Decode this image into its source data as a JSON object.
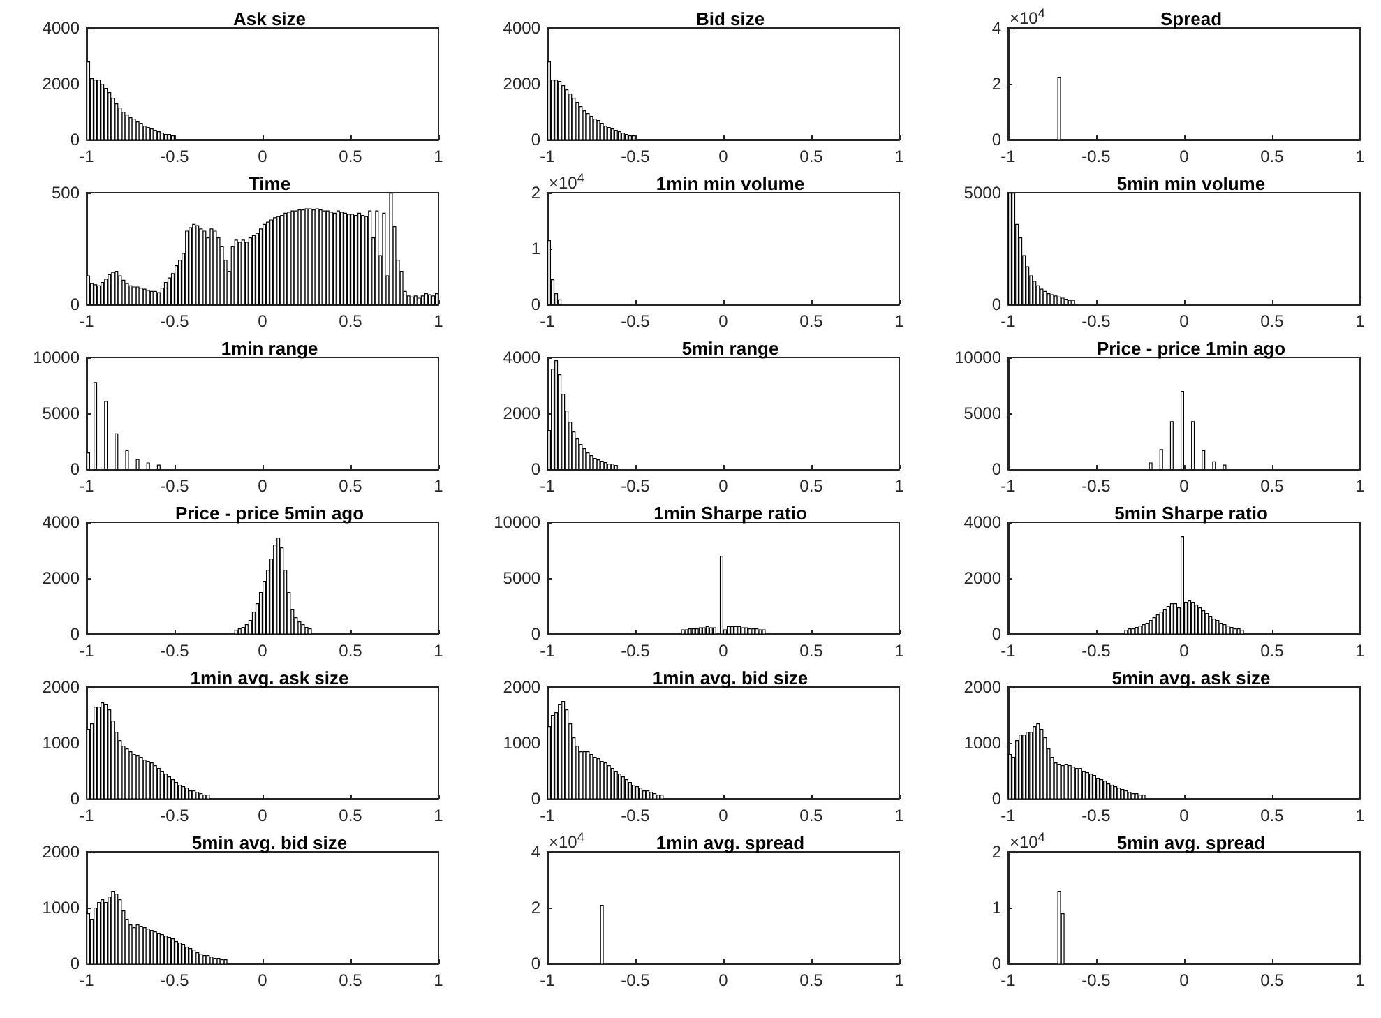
{
  "chart_data": [
    {
      "type": "histogram",
      "title": "Ask size",
      "color": "#ffffff",
      "xlim": [
        -1,
        1
      ],
      "xticks": [
        -1,
        -0.5,
        0,
        0.5,
        1
      ],
      "ylim": [
        0,
        4000
      ],
      "yticks": [
        0,
        2000,
        4000
      ],
      "bins": [
        -1,
        -0.98,
        -0.96,
        -0.94,
        -0.92,
        -0.9,
        -0.88,
        -0.86,
        -0.84,
        -0.82,
        -0.8,
        -0.78,
        -0.76,
        -0.74,
        -0.72,
        -0.7,
        -0.68,
        -0.66,
        -0.64,
        -0.62,
        -0.6,
        -0.58,
        -0.56,
        -0.54,
        -0.52,
        -0.5
      ],
      "values": [
        2800,
        2200,
        2150,
        2150,
        2000,
        1850,
        1700,
        1500,
        1300,
        1150,
        1000,
        900,
        800,
        750,
        650,
        600,
        500,
        450,
        400,
        350,
        300,
        250,
        200,
        200,
        150
      ]
    },
    {
      "type": "histogram",
      "title": "Bid size",
      "color": "#ffffff",
      "xlim": [
        -1,
        1
      ],
      "xticks": [
        -1,
        -0.5,
        0,
        0.5,
        1
      ],
      "ylim": [
        0,
        4000
      ],
      "yticks": [
        0,
        2000,
        4000
      ],
      "bins": [
        -1,
        -0.98,
        -0.96,
        -0.94,
        -0.92,
        -0.9,
        -0.88,
        -0.86,
        -0.84,
        -0.82,
        -0.8,
        -0.78,
        -0.76,
        -0.74,
        -0.72,
        -0.7,
        -0.68,
        -0.66,
        -0.64,
        -0.62,
        -0.6,
        -0.58,
        -0.56,
        -0.54,
        -0.52,
        -0.5
      ],
      "values": [
        2800,
        2150,
        2150,
        2100,
        1950,
        1800,
        1650,
        1500,
        1350,
        1200,
        1050,
        950,
        850,
        750,
        700,
        600,
        500,
        450,
        400,
        350,
        300,
        250,
        200,
        150,
        150
      ]
    },
    {
      "type": "histogram",
      "title": "Spread",
      "color": "#ffffff",
      "xlim": [
        -1,
        1
      ],
      "xticks": [
        -1,
        -0.5,
        0,
        0.5,
        1
      ],
      "ylim": [
        0,
        4
      ],
      "yticks": [
        0,
        2,
        4
      ],
      "annotations": [
        "×10$^{4}$"
      ],
      "bins": [
        -0.72,
        -0.7
      ],
      "values": [
        2.25
      ]
    },
    {
      "type": "histogram",
      "title": "Time",
      "color": "#ffffff",
      "xlim": [
        -1,
        1
      ],
      "xticks": [
        -1,
        -0.5,
        0,
        0.5,
        1
      ],
      "ylim": [
        0,
        500
      ],
      "yticks": [
        0,
        500
      ],
      "bins": [
        -1,
        -0.98,
        -0.96,
        -0.94,
        -0.92,
        -0.9,
        -0.88,
        -0.86,
        -0.84,
        -0.82,
        -0.8,
        -0.78,
        -0.76,
        -0.74,
        -0.72,
        -0.7,
        -0.68,
        -0.66,
        -0.64,
        -0.62,
        -0.6,
        -0.58,
        -0.56,
        -0.54,
        -0.52,
        -0.5,
        -0.48,
        -0.46,
        -0.44,
        -0.42,
        -0.4,
        -0.38,
        -0.36,
        -0.34,
        -0.32,
        -0.3,
        -0.28,
        -0.26,
        -0.24,
        -0.22,
        -0.2,
        -0.18,
        -0.16,
        -0.14,
        -0.12,
        -0.1,
        -0.08,
        -0.06,
        -0.04,
        -0.02,
        0,
        0.02,
        0.04,
        0.06,
        0.08,
        0.1,
        0.12,
        0.14,
        0.16,
        0.18,
        0.2,
        0.22,
        0.24,
        0.26,
        0.28,
        0.3,
        0.32,
        0.34,
        0.36,
        0.38,
        0.4,
        0.42,
        0.44,
        0.46,
        0.48,
        0.5,
        0.52,
        0.54,
        0.56,
        0.58,
        0.6,
        0.62,
        0.64,
        0.66,
        0.68,
        0.7,
        0.72,
        0.74,
        0.76,
        0.78,
        0.8,
        0.82,
        0.84,
        0.86,
        0.88,
        0.9,
        0.92,
        0.94,
        0.96,
        0.98,
        1
      ],
      "values": [
        130,
        95,
        90,
        85,
        100,
        115,
        135,
        145,
        150,
        130,
        110,
        95,
        85,
        80,
        80,
        75,
        70,
        65,
        60,
        60,
        55,
        75,
        100,
        120,
        140,
        175,
        200,
        230,
        330,
        345,
        360,
        355,
        340,
        330,
        300,
        340,
        330,
        300,
        260,
        200,
        150,
        260,
        290,
        280,
        290,
        280,
        300,
        310,
        320,
        340,
        360,
        370,
        380,
        390,
        395,
        400,
        410,
        415,
        420,
        420,
        425,
        425,
        430,
        430,
        425,
        430,
        425,
        420,
        420,
        415,
        410,
        420,
        415,
        410,
        405,
        405,
        400,
        410,
        400,
        395,
        420,
        300,
        420,
        220,
        410,
        130,
        500,
        350,
        200,
        150,
        60,
        40,
        35,
        40,
        30,
        40,
        50,
        45,
        40,
        50
      ]
    },
    {
      "type": "histogram",
      "title": "1min min volume",
      "color": "#ffffff",
      "xlim": [
        -1,
        1
      ],
      "xticks": [
        -1,
        -0.5,
        0,
        0.5,
        1
      ],
      "ylim": [
        0,
        2
      ],
      "yticks": [
        0,
        1,
        2
      ],
      "annotations": [
        "×10$^{4}$"
      ],
      "bins": [
        -1,
        -0.98,
        -0.96,
        -0.94,
        -0.92
      ],
      "values": [
        1.15,
        0.45,
        0.2,
        0.09
      ]
    },
    {
      "type": "histogram",
      "title": "5min min volume",
      "color": "#ffffff",
      "xlim": [
        -1,
        1
      ],
      "xticks": [
        -1,
        -0.5,
        0,
        0.5,
        1
      ],
      "ylim": [
        0,
        5000
      ],
      "yticks": [
        0,
        5000
      ],
      "bins": [
        -1,
        -0.98,
        -0.96,
        -0.94,
        -0.92,
        -0.9,
        -0.88,
        -0.86,
        -0.84,
        -0.82,
        -0.8,
        -0.78,
        -0.76,
        -0.74,
        -0.72,
        -0.7,
        -0.68,
        -0.66,
        -0.64,
        -0.62
      ],
      "values": [
        5000,
        5000,
        3600,
        3000,
        2200,
        1700,
        1300,
        1050,
        850,
        700,
        600,
        500,
        450,
        400,
        350,
        300,
        250,
        200,
        200
      ]
    },
    {
      "type": "histogram",
      "title": "1min range",
      "color": "#ffffff",
      "xlim": [
        -1,
        1
      ],
      "xticks": [
        -1,
        -0.5,
        0,
        0.5,
        1
      ],
      "ylim": [
        0,
        10000
      ],
      "yticks": [
        0,
        5000,
        10000
      ],
      "bins": [
        -1,
        -0.98,
        -0.96,
        -0.94,
        -0.92,
        -0.9,
        -0.88,
        -0.86,
        -0.84,
        -0.82,
        -0.8,
        -0.78,
        -0.76,
        -0.74,
        -0.72,
        -0.7,
        -0.68,
        -0.66,
        -0.64,
        -0.62,
        -0.6,
        -0.58
      ],
      "values": [
        1500,
        0,
        7800,
        0,
        0,
        6100,
        0,
        0,
        3200,
        0,
        0,
        1700,
        0,
        0,
        900,
        0,
        0,
        600,
        0,
        0,
        400
      ]
    },
    {
      "type": "histogram",
      "title": "5min range",
      "color": "#ffffff",
      "xlim": [
        -1,
        1
      ],
      "xticks": [
        -1,
        -0.5,
        0,
        0.5,
        1
      ],
      "ylim": [
        0,
        4000
      ],
      "yticks": [
        0,
        2000,
        4000
      ],
      "bins": [
        -1,
        -0.98,
        -0.96,
        -0.94,
        -0.92,
        -0.9,
        -0.88,
        -0.86,
        -0.84,
        -0.82,
        -0.8,
        -0.78,
        -0.76,
        -0.74,
        -0.72,
        -0.7,
        -0.68,
        -0.66,
        -0.64,
        -0.62,
        -0.6
      ],
      "values": [
        1400,
        3600,
        3900,
        3400,
        2700,
        2100,
        1700,
        1350,
        1100,
        900,
        750,
        600,
        500,
        400,
        350,
        300,
        250,
        200,
        200,
        150
      ]
    },
    {
      "type": "histogram",
      "title": "Price - price 1min ago",
      "color": "#ffffff",
      "xlim": [
        -1,
        1
      ],
      "xticks": [
        -1,
        -0.5,
        0,
        0.5,
        1
      ],
      "ylim": [
        0,
        10000
      ],
      "yticks": [
        0,
        5000,
        10000
      ],
      "bins": [
        -0.2,
        -0.18,
        -0.16,
        -0.14,
        -0.12,
        -0.1,
        -0.08,
        -0.06,
        -0.04,
        -0.02,
        0,
        0.02,
        0.04,
        0.06,
        0.08,
        0.1,
        0.12,
        0.14,
        0.16,
        0.18,
        0.2,
        0.22,
        0.24
      ],
      "values": [
        600,
        0,
        0,
        1800,
        0,
        0,
        4300,
        0,
        0,
        7000,
        0,
        0,
        4300,
        0,
        0,
        1700,
        0,
        0,
        700,
        0,
        0,
        400
      ]
    },
    {
      "type": "histogram",
      "title": "Price - price 5min ago",
      "color": "#ffffff",
      "xlim": [
        -1,
        1
      ],
      "xticks": [
        -1,
        -0.5,
        0,
        0.5,
        1
      ],
      "ylim": [
        0,
        4000
      ],
      "yticks": [
        0,
        2000,
        4000
      ],
      "bins": [
        -0.16,
        -0.14,
        -0.12,
        -0.1,
        -0.08,
        -0.06,
        -0.04,
        -0.02,
        0,
        0.02,
        0.04,
        0.06,
        0.08,
        0.1,
        0.12,
        0.14,
        0.16,
        0.18,
        0.2,
        0.22,
        0.24,
        0.26,
        0.28
      ],
      "values": [
        150,
        200,
        250,
        350,
        500,
        800,
        1100,
        1500,
        1900,
        2300,
        2700,
        3200,
        3450,
        3100,
        2300,
        1500,
        900,
        600,
        450,
        350,
        250,
        200
      ]
    },
    {
      "type": "histogram",
      "title": "1min Sharpe ratio",
      "color": "#ffffff",
      "xlim": [
        -1,
        1
      ],
      "xticks": [
        -1,
        -0.5,
        0,
        0.5,
        1
      ],
      "ylim": [
        0,
        10000
      ],
      "yticks": [
        0,
        5000,
        10000
      ],
      "bins": [
        -0.24,
        -0.22,
        -0.2,
        -0.18,
        -0.16,
        -0.14,
        -0.12,
        -0.1,
        -0.08,
        -0.06,
        -0.04,
        -0.02,
        0,
        0.02,
        0.04,
        0.06,
        0.08,
        0.1,
        0.12,
        0.14,
        0.16,
        0.18,
        0.2,
        0.22,
        0.24
      ],
      "values": [
        400,
        400,
        500,
        500,
        500,
        600,
        600,
        700,
        600,
        600,
        0,
        7000,
        400,
        700,
        700,
        700,
        700,
        600,
        600,
        500,
        500,
        500,
        400,
        400
      ]
    },
    {
      "type": "histogram",
      "title": "5min Sharpe ratio",
      "color": "#ffffff",
      "xlim": [
        -1,
        1
      ],
      "xticks": [
        -1,
        -0.5,
        0,
        0.5,
        1
      ],
      "ylim": [
        0,
        4000
      ],
      "yticks": [
        0,
        2000,
        4000
      ],
      "bins": [
        -0.34,
        -0.32,
        -0.3,
        -0.28,
        -0.26,
        -0.24,
        -0.22,
        -0.2,
        -0.18,
        -0.16,
        -0.14,
        -0.12,
        -0.1,
        -0.08,
        -0.06,
        -0.04,
        -0.02,
        0,
        0.02,
        0.04,
        0.06,
        0.08,
        0.1,
        0.12,
        0.14,
        0.16,
        0.18,
        0.2,
        0.22,
        0.24,
        0.26,
        0.28,
        0.3,
        0.32,
        0.34
      ],
      "values": [
        150,
        200,
        200,
        250,
        300,
        350,
        400,
        500,
        600,
        700,
        800,
        900,
        1000,
        1100,
        1100,
        950,
        3500,
        1150,
        1200,
        1150,
        1050,
        950,
        850,
        750,
        650,
        550,
        500,
        400,
        350,
        300,
        250,
        200,
        200,
        150
      ]
    },
    {
      "type": "histogram",
      "title": "1min avg. ask size",
      "color": "#ffffff",
      "xlim": [
        -1,
        1
      ],
      "xticks": [
        -1,
        -0.5,
        0,
        0.5,
        1
      ],
      "ylim": [
        0,
        2000
      ],
      "yticks": [
        0,
        1000,
        2000
      ],
      "bins": [
        -1,
        -0.98,
        -0.96,
        -0.94,
        -0.92,
        -0.9,
        -0.88,
        -0.86,
        -0.84,
        -0.82,
        -0.8,
        -0.78,
        -0.76,
        -0.74,
        -0.72,
        -0.7,
        -0.68,
        -0.66,
        -0.64,
        -0.62,
        -0.6,
        -0.58,
        -0.56,
        -0.54,
        -0.52,
        -0.5,
        -0.48,
        -0.46,
        -0.44,
        -0.42,
        -0.4,
        -0.38,
        -0.36,
        -0.34,
        -0.32,
        -0.3
      ],
      "values": [
        1250,
        1350,
        1650,
        1650,
        1725,
        1700,
        1600,
        1400,
        1200,
        1050,
        950,
        900,
        850,
        800,
        775,
        750,
        700,
        675,
        650,
        600,
        550,
        500,
        450,
        400,
        350,
        300,
        250,
        225,
        200,
        150,
        150,
        125,
        100,
        75,
        75
      ]
    },
    {
      "type": "histogram",
      "title": "1min avg. bid size",
      "color": "#ffffff",
      "xlim": [
        -1,
        1
      ],
      "xticks": [
        -1,
        -0.5,
        0,
        0.5,
        1
      ],
      "ylim": [
        0,
        2000
      ],
      "yticks": [
        0,
        1000,
        2000
      ],
      "bins": [
        -1,
        -0.98,
        -0.96,
        -0.94,
        -0.92,
        -0.9,
        -0.88,
        -0.86,
        -0.84,
        -0.82,
        -0.8,
        -0.78,
        -0.76,
        -0.74,
        -0.72,
        -0.7,
        -0.68,
        -0.66,
        -0.64,
        -0.62,
        -0.6,
        -0.58,
        -0.56,
        -0.54,
        -0.52,
        -0.5,
        -0.48,
        -0.46,
        -0.44,
        -0.42,
        -0.4,
        -0.38,
        -0.36,
        -0.34
      ],
      "values": [
        1300,
        1500,
        1550,
        1700,
        1750,
        1600,
        1350,
        1100,
        950,
        850,
        850,
        850,
        800,
        750,
        725,
        675,
        650,
        600,
        550,
        500,
        450,
        400,
        350,
        300,
        250,
        225,
        200,
        150,
        150,
        125,
        100,
        75,
        75
      ]
    },
    {
      "type": "histogram",
      "title": "5min avg. ask size",
      "color": "#ffffff",
      "xlim": [
        -1,
        1
      ],
      "xticks": [
        -1,
        -0.5,
        0,
        0.5,
        1
      ],
      "ylim": [
        0,
        2000
      ],
      "yticks": [
        0,
        1000,
        2000
      ],
      "bins": [
        -1,
        -0.98,
        -0.96,
        -0.94,
        -0.92,
        -0.9,
        -0.88,
        -0.86,
        -0.84,
        -0.82,
        -0.8,
        -0.78,
        -0.76,
        -0.74,
        -0.72,
        -0.7,
        -0.68,
        -0.66,
        -0.64,
        -0.62,
        -0.6,
        -0.58,
        -0.56,
        -0.54,
        -0.52,
        -0.5,
        -0.48,
        -0.46,
        -0.44,
        -0.42,
        -0.4,
        -0.38,
        -0.36,
        -0.34,
        -0.32,
        -0.3,
        -0.28,
        -0.26,
        -0.24,
        -0.22
      ],
      "values": [
        800,
        750,
        1050,
        1150,
        1150,
        1200,
        1200,
        1300,
        1350,
        1250,
        1100,
        900,
        750,
        650,
        625,
        600,
        625,
        600,
        575,
        550,
        550,
        500,
        475,
        450,
        425,
        375,
        350,
        325,
        275,
        250,
        225,
        200,
        175,
        150,
        125,
        100,
        100,
        75,
        75
      ]
    },
    {
      "type": "histogram",
      "title": "5min avg. bid size",
      "color": "#ffffff",
      "xlim": [
        -1,
        1
      ],
      "xticks": [
        -1,
        -0.5,
        0,
        0.5,
        1
      ],
      "ylim": [
        0,
        2000
      ],
      "yticks": [
        0,
        1000,
        2000
      ],
      "bins": [
        -1,
        -0.98,
        -0.96,
        -0.94,
        -0.92,
        -0.9,
        -0.88,
        -0.86,
        -0.84,
        -0.82,
        -0.8,
        -0.78,
        -0.76,
        -0.74,
        -0.72,
        -0.7,
        -0.68,
        -0.66,
        -0.64,
        -0.62,
        -0.6,
        -0.58,
        -0.56,
        -0.54,
        -0.52,
        -0.5,
        -0.48,
        -0.46,
        -0.44,
        -0.42,
        -0.4,
        -0.38,
        -0.36,
        -0.34,
        -0.32,
        -0.3,
        -0.28,
        -0.26,
        -0.24,
        -0.22,
        -0.2
      ],
      "values": [
        900,
        800,
        1000,
        1100,
        1150,
        1100,
        1200,
        1300,
        1250,
        1150,
        950,
        800,
        700,
        650,
        700,
        675,
        650,
        625,
        600,
        575,
        550,
        525,
        500,
        475,
        450,
        400,
        375,
        350,
        300,
        275,
        250,
        200,
        175,
        150,
        150,
        125,
        100,
        100,
        75,
        75
      ]
    },
    {
      "type": "histogram",
      "title": "1min avg. spread",
      "color": "#ffffff",
      "xlim": [
        -1,
        1
      ],
      "xticks": [
        -1,
        -0.5,
        0,
        0.5,
        1
      ],
      "ylim": [
        0,
        4
      ],
      "yticks": [
        0,
        2,
        4
      ],
      "annotations": [
        "×10$^{4}$"
      ],
      "bins": [
        -0.7,
        -0.68
      ],
      "values": [
        2.1
      ]
    },
    {
      "type": "histogram",
      "title": "5min avg. spread",
      "color": "#ffffff",
      "xlim": [
        -1,
        1
      ],
      "xticks": [
        -1,
        -0.5,
        0,
        0.5,
        1
      ],
      "ylim": [
        0,
        2
      ],
      "yticks": [
        0,
        1,
        2
      ],
      "annotations": [
        "×10$^{4}$"
      ],
      "bins": [
        -0.72,
        -0.7,
        -0.68
      ],
      "values": [
        1.3,
        0.9
      ]
    }
  ]
}
